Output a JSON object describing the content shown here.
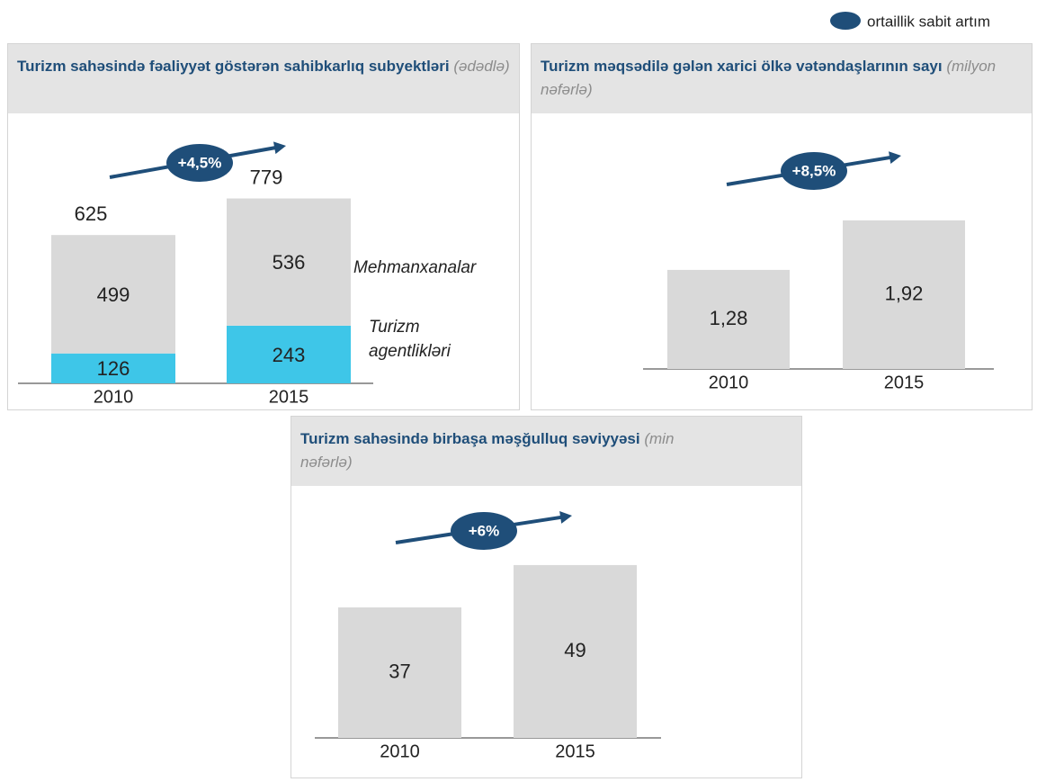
{
  "legend": {
    "label": "ortaillik sabit artım",
    "color": "#1f4e79"
  },
  "chart_data": [
    {
      "type": "stacked_bar",
      "title": "Turizm sahəsində fəaliyyət göstərən sahibkarlıq subyektləri",
      "subtitle": "(ədədlə)",
      "categories": [
        "2010",
        "2015"
      ],
      "series": [
        {
          "name": "Turizm agentlikləri",
          "color": "#3ec6e8",
          "values": [
            126,
            243
          ]
        },
        {
          "name": "Mehmanxanalar",
          "color": "#d9d9d9",
          "values": [
            499,
            536
          ]
        }
      ],
      "totals": [
        625,
        779
      ],
      "growth": "+4,5%",
      "ylim": [
        0,
        800
      ]
    },
    {
      "type": "bar",
      "title": "Turizm məqsədilə gələn xarici ölkə vətəndaşlarının sayı",
      "subtitle": "(milyon nəfərlə)",
      "categories": [
        "2010",
        "2015"
      ],
      "values": [
        1.28,
        1.92
      ],
      "value_labels": [
        "1,28",
        "1,92"
      ],
      "color": "#d9d9d9",
      "growth": "+8,5%",
      "ylim": [
        0,
        2
      ]
    },
    {
      "type": "bar",
      "title": "Turizm sahəsində birbaşa məşğulluq səviyyəsi",
      "subtitle": "(min nəfərlə)",
      "categories": [
        "2010",
        "2015"
      ],
      "values": [
        37,
        49
      ],
      "color": "#d9d9d9",
      "growth": "+6%",
      "ylim": [
        0,
        50
      ]
    }
  ]
}
